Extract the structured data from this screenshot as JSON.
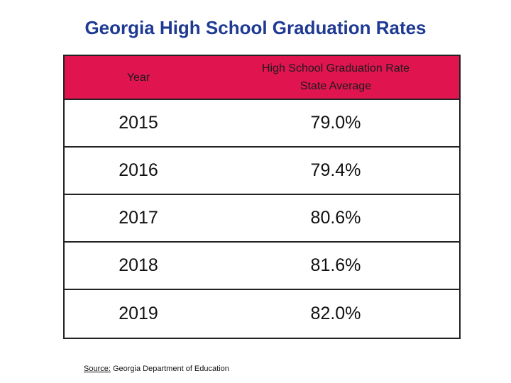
{
  "title": "Georgia High School Graduation Rates",
  "table": {
    "header": {
      "year": "Year",
      "rate_line1": "High School Graduation Rate",
      "rate_line2": "State Average"
    },
    "rows": [
      {
        "year": "2015",
        "rate": "79.0%"
      },
      {
        "year": "2016",
        "rate": "79.4%"
      },
      {
        "year": "2017",
        "rate": "80.6%"
      },
      {
        "year": "2018",
        "rate": "81.6%"
      },
      {
        "year": "2019",
        "rate": "82.0%"
      }
    ]
  },
  "source": {
    "label": "Source:",
    "text": " Georgia Department of Education"
  },
  "colors": {
    "title": "#1f3a93",
    "header_bg": "#e0154f",
    "border": "#222222"
  }
}
